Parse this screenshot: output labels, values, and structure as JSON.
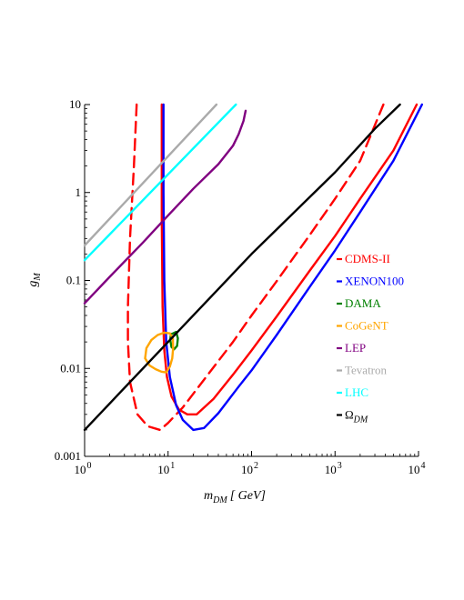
{
  "chart_data": {
    "type": "line",
    "title": "",
    "xlabel": {
      "main": "m",
      "sub": "DM",
      "unit": "[ GeV]"
    },
    "ylabel": {
      "main": "g",
      "sub": "M"
    },
    "x_scale": "log",
    "y_scale": "log",
    "xlim": [
      1,
      10000
    ],
    "ylim": [
      0.001,
      10
    ],
    "grid": false,
    "legend_position": "right",
    "x_ticks": [
      {
        "value": 1,
        "base": "10",
        "exp": "0"
      },
      {
        "value": 10,
        "base": "10",
        "exp": "1"
      },
      {
        "value": 100,
        "base": "10",
        "exp": "2"
      },
      {
        "value": 1000,
        "base": "10",
        "exp": "3"
      },
      {
        "value": 10000,
        "base": "10",
        "exp": "4"
      }
    ],
    "y_ticks": [
      {
        "value": 0.001,
        "label": "0.001"
      },
      {
        "value": 0.01,
        "label": "0.01"
      },
      {
        "value": 0.1,
        "label": "0.1"
      },
      {
        "value": 1,
        "label": "1"
      },
      {
        "value": 10,
        "label": "10"
      }
    ],
    "series": [
      {
        "name": "CDMS-II",
        "color": "#ff0000",
        "dash": false,
        "points": [
          [
            8.4,
            10
          ],
          [
            8.4,
            0.5
          ],
          [
            8.6,
            0.05
          ],
          [
            9,
            0.016
          ],
          [
            9.7,
            0.008
          ],
          [
            11,
            0.0048
          ],
          [
            13.5,
            0.0034
          ],
          [
            17,
            0.003
          ],
          [
            22,
            0.003
          ],
          [
            35,
            0.0045
          ],
          [
            60,
            0.0085
          ],
          [
            100,
            0.016
          ],
          [
            200,
            0.039
          ],
          [
            500,
            0.13
          ],
          [
            1000,
            0.32
          ],
          [
            2000,
            0.85
          ],
          [
            5000,
            3.0
          ],
          [
            9500,
            10
          ]
        ]
      },
      {
        "name": "CDMS-II dashed",
        "color": "#ff0000",
        "dash": true,
        "legend": false,
        "points": [
          [
            4.2,
            10
          ],
          [
            3.9,
            2.0
          ],
          [
            3.5,
            0.3
          ],
          [
            3.3,
            0.05
          ],
          [
            3.3,
            0.02
          ],
          [
            3.5,
            0.007
          ],
          [
            4.3,
            0.003
          ],
          [
            5.7,
            0.0022
          ],
          [
            8,
            0.002
          ],
          [
            10,
            0.0024
          ],
          [
            15,
            0.0036
          ],
          [
            30,
            0.0085
          ],
          [
            60,
            0.02
          ],
          [
            100,
            0.04
          ],
          [
            200,
            0.098
          ],
          [
            500,
            0.33
          ],
          [
            1000,
            0.85
          ],
          [
            2000,
            2.3
          ],
          [
            3800,
            10
          ]
        ]
      },
      {
        "name": "XENON100",
        "color": "#0000ff",
        "dash": false,
        "points": [
          [
            8.8,
            10
          ],
          [
            8.8,
            1.0
          ],
          [
            9,
            0.1
          ],
          [
            9.5,
            0.02
          ],
          [
            10.5,
            0.008
          ],
          [
            12.5,
            0.0038
          ],
          [
            15,
            0.0026
          ],
          [
            20,
            0.002
          ],
          [
            27,
            0.0021
          ],
          [
            40,
            0.0031
          ],
          [
            70,
            0.0062
          ],
          [
            100,
            0.0095
          ],
          [
            200,
            0.024
          ],
          [
            500,
            0.085
          ],
          [
            1000,
            0.22
          ],
          [
            2000,
            0.6
          ],
          [
            5000,
            2.3
          ],
          [
            11000,
            10
          ]
        ]
      },
      {
        "name": "DAMA",
        "color": "#008000",
        "dash": false,
        "shape": "loop",
        "points": [
          [
            11.5,
            0.025
          ],
          [
            12.5,
            0.026
          ],
          [
            13.1,
            0.022
          ],
          [
            12.8,
            0.018
          ],
          [
            11.8,
            0.0165
          ],
          [
            11,
            0.0175
          ],
          [
            10.6,
            0.021
          ],
          [
            10.8,
            0.0245
          ],
          [
            11.5,
            0.025
          ]
        ]
      },
      {
        "name": "CoGeNT",
        "color": "#ffa500",
        "dash": false,
        "shape": "loop",
        "points": [
          [
            5.3,
            0.013
          ],
          [
            5.5,
            0.017
          ],
          [
            6.3,
            0.021
          ],
          [
            7.5,
            0.024
          ],
          [
            9,
            0.0255
          ],
          [
            10.5,
            0.025
          ],
          [
            11.4,
            0.022
          ],
          [
            11.5,
            0.017
          ],
          [
            11.2,
            0.013
          ],
          [
            10.5,
            0.0105
          ],
          [
            9.5,
            0.009
          ],
          [
            8.3,
            0.0092
          ],
          [
            7.1,
            0.0098
          ],
          [
            6,
            0.0108
          ],
          [
            5.3,
            0.013
          ]
        ]
      },
      {
        "name": "LEP",
        "color": "#800080",
        "dash": false,
        "points": [
          [
            1,
            0.055
          ],
          [
            2,
            0.11
          ],
          [
            5,
            0.27
          ],
          [
            10,
            0.55
          ],
          [
            20,
            1.1
          ],
          [
            40,
            2.1
          ],
          [
            60,
            3.4
          ],
          [
            70,
            4.6
          ],
          [
            80,
            6.5
          ],
          [
            85,
            8.5
          ]
        ]
      },
      {
        "name": "Tevatron",
        "color": "#aaaaaa",
        "dash": false,
        "points": [
          [
            1,
            0.25
          ],
          [
            38,
            10
          ]
        ]
      },
      {
        "name": "LHC",
        "color": "#00ffff",
        "dash": false,
        "points": [
          [
            1,
            0.17
          ],
          [
            65,
            10
          ]
        ]
      },
      {
        "name": "ΩDM",
        "legend_main": "Ω",
        "legend_sub": "DM",
        "color": "#000000",
        "dash": false,
        "points": [
          [
            1,
            0.002
          ],
          [
            10,
            0.02
          ],
          [
            100,
            0.2
          ],
          [
            1000,
            1.7
          ],
          [
            3000,
            5.3
          ],
          [
            6000,
            10
          ]
        ]
      }
    ],
    "legend": [
      {
        "label": "CDMS-II",
        "color": "#ff0000"
      },
      {
        "label": "XENON100",
        "color": "#0000ff"
      },
      {
        "label": "DAMA",
        "color": "#008000"
      },
      {
        "label": "CoGeNT",
        "color": "#ffa500"
      },
      {
        "label": "LEP",
        "color": "#800080"
      },
      {
        "label": "Tevatron",
        "color": "#aaaaaa"
      },
      {
        "label": "LHC",
        "color": "#00ffff"
      },
      {
        "main": "Ω",
        "sub": "DM",
        "color": "#000000"
      }
    ]
  }
}
